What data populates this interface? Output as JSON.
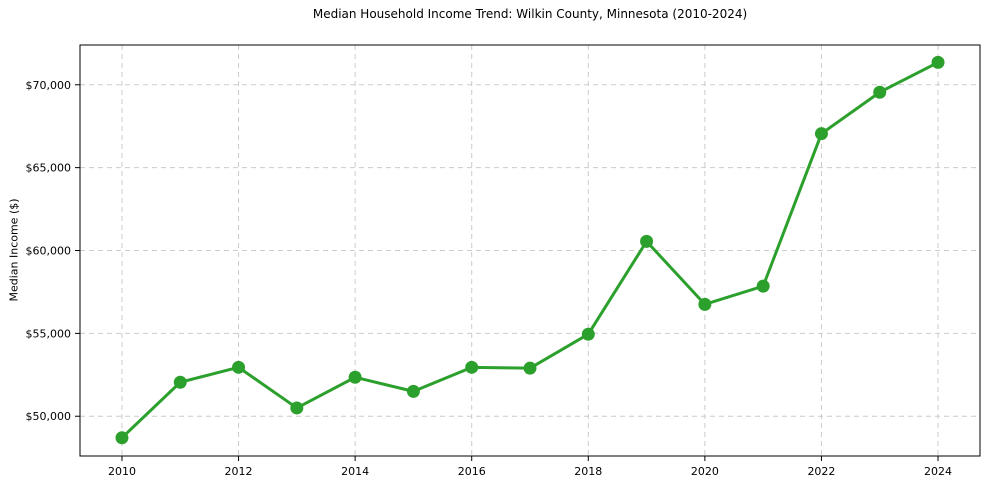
{
  "chart_data": {
    "type": "line",
    "title": "Median Household Income Trend: Wilkin County, Minnesota (2010-2024)",
    "xlabel": "",
    "ylabel": "Median Income ($)",
    "x": [
      2010,
      2011,
      2012,
      2013,
      2014,
      2015,
      2016,
      2017,
      2018,
      2019,
      2020,
      2021,
      2022,
      2023,
      2024
    ],
    "values": [
      48700,
      52050,
      52950,
      50500,
      52350,
      51500,
      52950,
      52900,
      54950,
      60550,
      56750,
      57850,
      67050,
      69550,
      71350
    ],
    "x_ticks": [
      2010,
      2012,
      2014,
      2016,
      2018,
      2020,
      2022,
      2024
    ],
    "x_tick_labels": [
      "2010",
      "2012",
      "2014",
      "2016",
      "2018",
      "2020",
      "2022",
      "2024"
    ],
    "y_ticks": [
      50000,
      55000,
      60000,
      65000,
      70000
    ],
    "y_tick_labels": [
      "$50,000",
      "$55,000",
      "$60,000",
      "$65,000",
      "$70,000"
    ],
    "xlim": [
      2009.28,
      2024.72
    ],
    "ylim": [
      47600,
      72400
    ],
    "grid": true,
    "grid_style": "dashed",
    "legend": "none",
    "marker": "circle",
    "line_color": "#2ca02c",
    "grid_color": "#cccccc",
    "axis_color": "#000000",
    "background_color": "#ffffff"
  }
}
